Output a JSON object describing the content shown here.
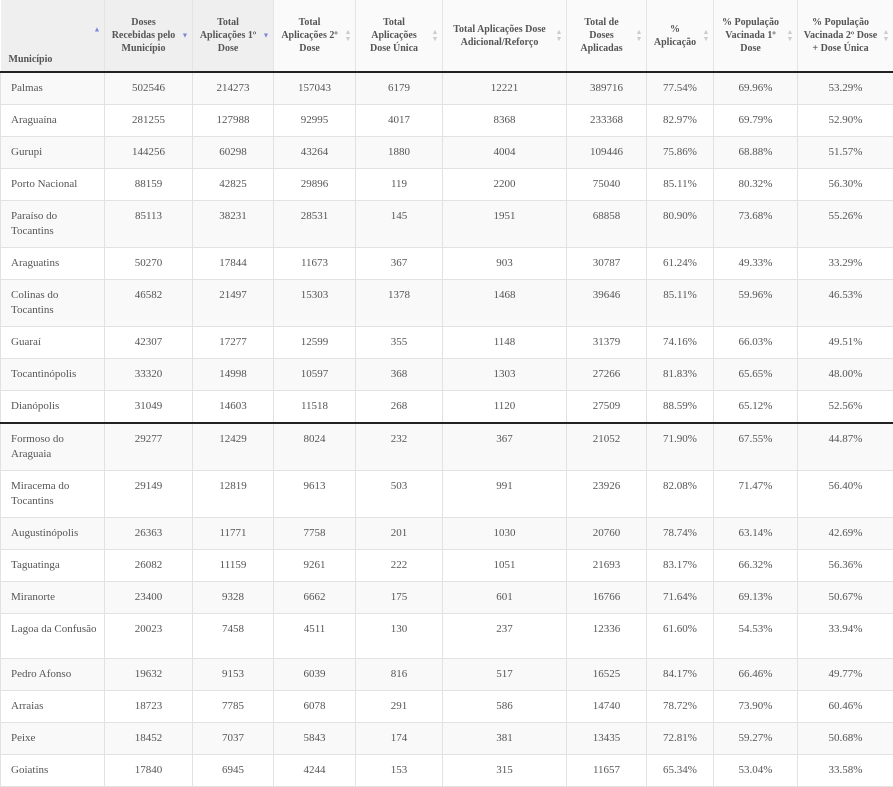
{
  "columns": [
    {
      "label": "Município",
      "sort": "asc"
    },
    {
      "label": "Doses Recebidas pelo Município",
      "sort": "desc"
    },
    {
      "label": "Total Aplicações 1º Dose",
      "sort": "desc"
    },
    {
      "label": "Total Aplicações 2º Dose",
      "sort": "none"
    },
    {
      "label": "Total Aplicações Dose Única",
      "sort": "none"
    },
    {
      "label": "Total Aplicações Dose Adicional/Reforço",
      "sort": "none"
    },
    {
      "label": "Total de Doses Aplicadas",
      "sort": "none"
    },
    {
      "label": "% Aplicação",
      "sort": "none"
    },
    {
      "label": "% População Vacinada 1º Dose",
      "sort": "none"
    },
    {
      "label": "% População Vacinada 2º Dose + Dose Única",
      "sort": "none"
    }
  ],
  "colors": {
    "sort_active": "#7a86d6",
    "sort_inactive": "#cccccc",
    "stripe": "#f9f9f9"
  },
  "rows": [
    [
      "Palmas",
      "502546",
      "214273",
      "157043",
      "6179",
      "12221",
      "389716",
      "77.54%",
      "69.96%",
      "53.29%"
    ],
    [
      "Araguaína",
      "281255",
      "127988",
      "92995",
      "4017",
      "8368",
      "233368",
      "82.97%",
      "69.79%",
      "52.90%"
    ],
    [
      "Gurupi",
      "144256",
      "60298",
      "43264",
      "1880",
      "4004",
      "109446",
      "75.86%",
      "68.88%",
      "51.57%"
    ],
    [
      "Porto Nacional",
      "88159",
      "42825",
      "29896",
      "119",
      "2200",
      "75040",
      "85.11%",
      "80.32%",
      "56.30%"
    ],
    [
      "Paraíso do Tocantins",
      "85113",
      "38231",
      "28531",
      "145",
      "1951",
      "68858",
      "80.90%",
      "73.68%",
      "55.26%"
    ],
    [
      "Araguatins",
      "50270",
      "17844",
      "11673",
      "367",
      "903",
      "30787",
      "61.24%",
      "49.33%",
      "33.29%"
    ],
    [
      "Colinas do Tocantins",
      "46582",
      "21497",
      "15303",
      "1378",
      "1468",
      "39646",
      "85.11%",
      "59.96%",
      "46.53%"
    ],
    [
      "Guaraí",
      "42307",
      "17277",
      "12599",
      "355",
      "1148",
      "31379",
      "74.16%",
      "66.03%",
      "49.51%"
    ],
    [
      "Tocantinópolis",
      "33320",
      "14998",
      "10597",
      "368",
      "1303",
      "27266",
      "81.83%",
      "65.65%",
      "48.00%"
    ],
    [
      "Dianópolis",
      "31049",
      "14603",
      "11518",
      "268",
      "1120",
      "27509",
      "88.59%",
      "65.12%",
      "52.56%"
    ],
    [
      "Formoso do Araguaia",
      "29277",
      "12429",
      "8024",
      "232",
      "367",
      "21052",
      "71.90%",
      "67.55%",
      "44.87%"
    ],
    [
      "Miracema do Tocantins",
      "29149",
      "12819",
      "9613",
      "503",
      "991",
      "23926",
      "82.08%",
      "71.47%",
      "56.40%"
    ],
    [
      "Augustinópolis",
      "26363",
      "11771",
      "7758",
      "201",
      "1030",
      "20760",
      "78.74%",
      "63.14%",
      "42.69%"
    ],
    [
      "Taguatinga",
      "26082",
      "11159",
      "9261",
      "222",
      "1051",
      "21693",
      "83.17%",
      "66.32%",
      "56.36%"
    ],
    [
      "Miranorte",
      "23400",
      "9328",
      "6662",
      "175",
      "601",
      "16766",
      "71.64%",
      "69.13%",
      "50.67%"
    ],
    [
      "Lagoa da Confusão",
      "20023",
      "7458",
      "4511",
      "130",
      "237",
      "12336",
      "61.60%",
      "54.53%",
      "33.94%"
    ],
    [
      "Pedro Afonso",
      "19632",
      "9153",
      "6039",
      "816",
      "517",
      "16525",
      "84.17%",
      "66.46%",
      "49.77%"
    ],
    [
      "Arraias",
      "18723",
      "7785",
      "6078",
      "291",
      "586",
      "14740",
      "78.72%",
      "73.90%",
      "60.46%"
    ],
    [
      "Peixe",
      "18452",
      "7037",
      "5843",
      "174",
      "381",
      "13435",
      "72.81%",
      "59.27%",
      "50.68%"
    ],
    [
      "Goiatins",
      "17840",
      "6945",
      "4244",
      "153",
      "315",
      "11657",
      "65.34%",
      "53.04%",
      "33.58%"
    ]
  ]
}
